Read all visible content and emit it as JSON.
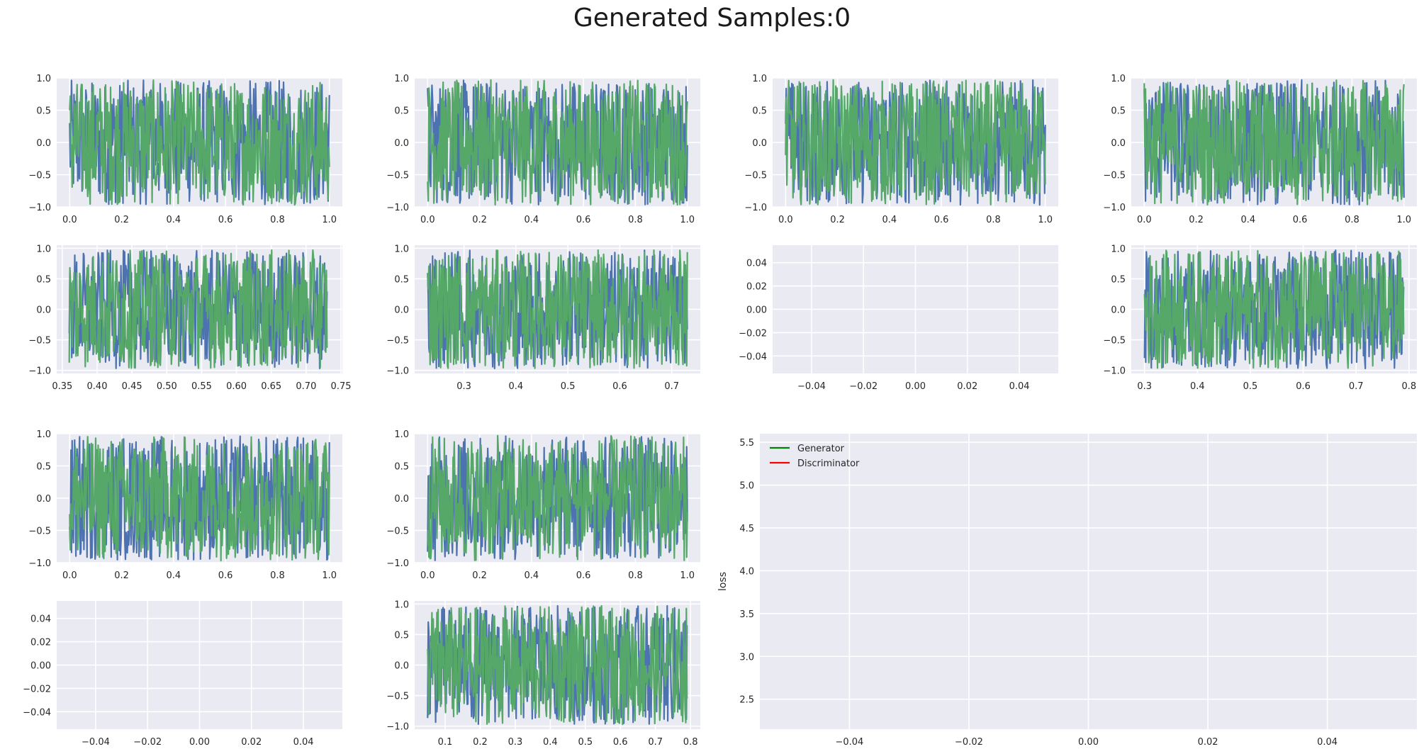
{
  "title": "Generated Samples:0",
  "colors": {
    "panel_bg": "#EAEAF2",
    "grid": "#FFFFFF",
    "series_blue": "#4C72B0",
    "series_green": "#55A868",
    "legend_generator": "#008000",
    "legend_discriminator": "#FF0000",
    "tick_text": "#262626"
  },
  "chart_data": [
    {
      "id": "r1c1",
      "type": "line",
      "series_count": 2,
      "series_colors": [
        "#4C72B0",
        "#55A868"
      ],
      "x_range": [
        0.0,
        1.0
      ],
      "y_range": [
        -1.0,
        1.0
      ],
      "xlim": [
        -0.05,
        1.05
      ],
      "ylim": [
        -1.0,
        1.0
      ],
      "xticks": [
        0.0,
        0.2,
        0.4,
        0.6,
        0.8,
        1.0
      ],
      "xtick_labels": [
        "0.0",
        "0.2",
        "0.4",
        "0.6",
        "0.8",
        "1.0"
      ],
      "yticks": [
        -1.0,
        -0.5,
        0.0,
        0.5,
        1.0
      ],
      "ytick_labels": [
        "−1.0",
        "−0.5",
        "0.0",
        "0.5",
        "1.0"
      ],
      "grid": true
    },
    {
      "id": "r1c2",
      "type": "line",
      "series_count": 2,
      "series_colors": [
        "#4C72B0",
        "#55A868"
      ],
      "x_range": [
        0.0,
        1.0
      ],
      "y_range": [
        -1.0,
        1.0
      ],
      "xlim": [
        -0.05,
        1.05
      ],
      "ylim": [
        -1.0,
        1.0
      ],
      "xticks": [
        0.0,
        0.2,
        0.4,
        0.6,
        0.8,
        1.0
      ],
      "xtick_labels": [
        "0.0",
        "0.2",
        "0.4",
        "0.6",
        "0.8",
        "1.0"
      ],
      "yticks": [
        -1.0,
        -0.5,
        0.0,
        0.5,
        1.0
      ],
      "ytick_labels": [
        "−1.0",
        "−0.5",
        "0.0",
        "0.5",
        "1.0"
      ],
      "grid": true
    },
    {
      "id": "r1c3",
      "type": "line",
      "series_count": 2,
      "series_colors": [
        "#4C72B0",
        "#55A868"
      ],
      "x_range": [
        0.0,
        1.0
      ],
      "y_range": [
        -1.0,
        1.0
      ],
      "xlim": [
        -0.05,
        1.05
      ],
      "ylim": [
        -1.0,
        1.0
      ],
      "xticks": [
        0.0,
        0.2,
        0.4,
        0.6,
        0.8,
        1.0
      ],
      "xtick_labels": [
        "0.0",
        "0.2",
        "0.4",
        "0.6",
        "0.8",
        "1.0"
      ],
      "yticks": [
        -1.0,
        -0.5,
        0.0,
        0.5,
        1.0
      ],
      "ytick_labels": [
        "−1.0",
        "−0.5",
        "0.0",
        "0.5",
        "1.0"
      ],
      "grid": true
    },
    {
      "id": "r1c4",
      "type": "line",
      "series_count": 2,
      "series_colors": [
        "#4C72B0",
        "#55A868"
      ],
      "x_range": [
        0.0,
        1.0
      ],
      "y_range": [
        -1.0,
        1.0
      ],
      "xlim": [
        -0.05,
        1.05
      ],
      "ylim": [
        -1.0,
        1.0
      ],
      "xticks": [
        0.0,
        0.2,
        0.4,
        0.6,
        0.8,
        1.0
      ],
      "xtick_labels": [
        "0.0",
        "0.2",
        "0.4",
        "0.6",
        "0.8",
        "1.0"
      ],
      "yticks": [
        -1.0,
        -0.5,
        0.0,
        0.5,
        1.0
      ],
      "ytick_labels": [
        "−1.0",
        "−0.5",
        "0.0",
        "0.5",
        "1.0"
      ],
      "grid": true
    },
    {
      "id": "r2c1",
      "type": "line",
      "series_count": 2,
      "series_colors": [
        "#4C72B0",
        "#55A868"
      ],
      "x_range": [
        0.36,
        0.73
      ],
      "y_range": [
        -1.0,
        1.0
      ],
      "xlim": [
        0.342,
        0.752
      ],
      "ylim": [
        -1.05,
        1.05
      ],
      "xticks": [
        0.35,
        0.4,
        0.45,
        0.5,
        0.55,
        0.6,
        0.65,
        0.7,
        0.75
      ],
      "xtick_labels": [
        "0.35",
        "0.40",
        "0.45",
        "0.50",
        "0.55",
        "0.60",
        "0.65",
        "0.70",
        "0.75"
      ],
      "yticks": [
        -1.0,
        -0.5,
        0.0,
        0.5,
        1.0
      ],
      "ytick_labels": [
        "−1.0",
        "−0.5",
        "0.0",
        "0.5",
        "1.0"
      ],
      "grid": true
    },
    {
      "id": "r2c2",
      "type": "line",
      "series_count": 2,
      "series_colors": [
        "#4C72B0",
        "#55A868"
      ],
      "x_range": [
        0.23,
        0.73
      ],
      "y_range": [
        -1.0,
        1.0
      ],
      "xlim": [
        0.205,
        0.755
      ],
      "ylim": [
        -1.05,
        1.05
      ],
      "xticks": [
        0.3,
        0.4,
        0.5,
        0.6,
        0.7
      ],
      "xtick_labels": [
        "0.3",
        "0.4",
        "0.5",
        "0.6",
        "0.7"
      ],
      "yticks": [
        -1.0,
        -0.5,
        0.0,
        0.5,
        1.0
      ],
      "ytick_labels": [
        "−1.0",
        "−0.5",
        "0.0",
        "0.5",
        "1.0"
      ],
      "grid": true
    },
    {
      "id": "r2c3",
      "type": "line",
      "series_count": 0,
      "xlim": [
        -0.055,
        0.055
      ],
      "ylim": [
        -0.055,
        0.055
      ],
      "xticks": [
        -0.04,
        -0.02,
        0.0,
        0.02,
        0.04
      ],
      "xtick_labels": [
        "−0.04",
        "−0.02",
        "0.00",
        "0.02",
        "0.04"
      ],
      "yticks": [
        -0.04,
        -0.02,
        0.0,
        0.02,
        0.04
      ],
      "ytick_labels": [
        "−0.04",
        "−0.02",
        "0.00",
        "0.02",
        "0.04"
      ],
      "grid": true
    },
    {
      "id": "r2c4",
      "type": "line",
      "series_count": 2,
      "series_colors": [
        "#4C72B0",
        "#55A868"
      ],
      "x_range": [
        0.3,
        0.79
      ],
      "y_range": [
        -1.0,
        1.0
      ],
      "xlim": [
        0.275,
        0.815
      ],
      "ylim": [
        -1.05,
        1.05
      ],
      "xticks": [
        0.3,
        0.4,
        0.5,
        0.6,
        0.7,
        0.8
      ],
      "xtick_labels": [
        "0.3",
        "0.4",
        "0.5",
        "0.6",
        "0.7",
        "0.8"
      ],
      "yticks": [
        -1.0,
        -0.5,
        0.0,
        0.5,
        1.0
      ],
      "ytick_labels": [
        "−1.0",
        "−0.5",
        "0.0",
        "0.5",
        "1.0"
      ],
      "grid": true
    },
    {
      "id": "r3c1",
      "type": "line",
      "series_count": 2,
      "series_colors": [
        "#4C72B0",
        "#55A868"
      ],
      "x_range": [
        0.0,
        1.0
      ],
      "y_range": [
        -1.0,
        1.0
      ],
      "xlim": [
        -0.05,
        1.05
      ],
      "ylim": [
        -1.0,
        1.0
      ],
      "xticks": [
        0.0,
        0.2,
        0.4,
        0.6,
        0.8,
        1.0
      ],
      "xtick_labels": [
        "0.0",
        "0.2",
        "0.4",
        "0.6",
        "0.8",
        "1.0"
      ],
      "yticks": [
        -1.0,
        -0.5,
        0.0,
        0.5,
        1.0
      ],
      "ytick_labels": [
        "−1.0",
        "−0.5",
        "0.0",
        "0.5",
        "1.0"
      ],
      "grid": true
    },
    {
      "id": "r3c2",
      "type": "line",
      "series_count": 2,
      "series_colors": [
        "#4C72B0",
        "#55A868"
      ],
      "x_range": [
        0.0,
        1.0
      ],
      "y_range": [
        -1.0,
        1.0
      ],
      "xlim": [
        -0.05,
        1.05
      ],
      "ylim": [
        -1.0,
        1.0
      ],
      "xticks": [
        0.0,
        0.2,
        0.4,
        0.6,
        0.8,
        1.0
      ],
      "xtick_labels": [
        "0.0",
        "0.2",
        "0.4",
        "0.6",
        "0.8",
        "1.0"
      ],
      "yticks": [
        -1.0,
        -0.5,
        0.0,
        0.5,
        1.0
      ],
      "ytick_labels": [
        "−1.0",
        "−0.5",
        "0.0",
        "0.5",
        "1.0"
      ],
      "grid": true
    },
    {
      "id": "r4c1",
      "type": "line",
      "series_count": 0,
      "xlim": [
        -0.055,
        0.055
      ],
      "ylim": [
        -0.055,
        0.055
      ],
      "xticks": [
        -0.04,
        -0.02,
        0.0,
        0.02,
        0.04
      ],
      "xtick_labels": [
        "−0.04",
        "−0.02",
        "0.00",
        "0.02",
        "0.04"
      ],
      "yticks": [
        -0.04,
        -0.02,
        0.0,
        0.02,
        0.04
      ],
      "ytick_labels": [
        "−0.04",
        "−0.02",
        "0.00",
        "0.02",
        "0.04"
      ],
      "grid": true
    },
    {
      "id": "r4c2",
      "type": "line",
      "series_count": 2,
      "series_colors": [
        "#4C72B0",
        "#55A868"
      ],
      "x_range": [
        0.05,
        0.79
      ],
      "y_range": [
        -1.0,
        1.0
      ],
      "xlim": [
        0.013,
        0.828
      ],
      "ylim": [
        -1.05,
        1.05
      ],
      "xticks": [
        0.1,
        0.2,
        0.3,
        0.4,
        0.5,
        0.6,
        0.7,
        0.8
      ],
      "xtick_labels": [
        "0.1",
        "0.2",
        "0.3",
        "0.4",
        "0.5",
        "0.6",
        "0.7",
        "0.8"
      ],
      "yticks": [
        -1.0,
        -0.5,
        0.0,
        0.5,
        1.0
      ],
      "ytick_labels": [
        "−1.0",
        "−0.5",
        "0.0",
        "0.5",
        "1.0"
      ],
      "grid": true
    },
    {
      "id": "loss",
      "type": "line",
      "series_count": 0,
      "ylabel": "loss",
      "xlim": [
        -0.055,
        0.055
      ],
      "ylim": [
        2.15,
        5.6
      ],
      "xticks": [
        -0.04,
        -0.02,
        0.0,
        0.02,
        0.04
      ],
      "xtick_labels": [
        "−0.04",
        "−0.02",
        "0.00",
        "0.02",
        "0.04"
      ],
      "yticks": [
        2.5,
        3.0,
        3.5,
        4.0,
        4.5,
        5.0,
        5.5
      ],
      "ytick_labels": [
        "2.5",
        "3.0",
        "3.5",
        "4.0",
        "4.5",
        "5.0",
        "5.5"
      ],
      "grid": true,
      "legend_placement": "top-left",
      "series": [
        {
          "name": "Generator",
          "color": "#008000",
          "values": []
        },
        {
          "name": "Discriminator",
          "color": "#FF0000",
          "values": []
        }
      ]
    }
  ]
}
